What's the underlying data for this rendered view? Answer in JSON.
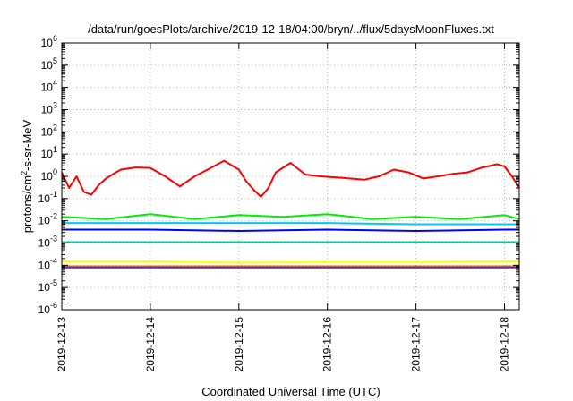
{
  "chart_data": {
    "type": "line",
    "title": "/data/run/goesPlots/archive/2019-12-18/04:00/bryn/../flux/5daysMoonFluxes.txt",
    "xlabel": "Coordinated Universal Time (UTC)",
    "ylabel": "protons/cm²-s-sr-MeV",
    "yscale": "log",
    "ylim": [
      1e-06,
      1000000.0
    ],
    "xlim": [
      "2019-12-13T00:00",
      "2019-12-18T04:00"
    ],
    "grid": true,
    "legend": "none",
    "x_ticks": [
      "2019-12-13",
      "2019-12-14",
      "2019-12-15",
      "2019-12-16",
      "2019-12-17",
      "2019-12-18"
    ],
    "y_ticks": [
      {
        "base": "10",
        "exp": "-6",
        "value": 1e-06
      },
      {
        "base": "10",
        "exp": "-5",
        "value": 1e-05
      },
      {
        "base": "10",
        "exp": "-4",
        "value": 0.0001
      },
      {
        "base": "10",
        "exp": "-3",
        "value": 0.001
      },
      {
        "base": "10",
        "exp": "-2",
        "value": 0.01
      },
      {
        "base": "10",
        "exp": "-1",
        "value": 0.1
      },
      {
        "base": "10",
        "exp": "0",
        "value": 1
      },
      {
        "base": "10",
        "exp": "1",
        "value": 10
      },
      {
        "base": "10",
        "exp": "2",
        "value": 100
      },
      {
        "base": "10",
        "exp": "3",
        "value": 1000
      },
      {
        "base": "10",
        "exp": "4",
        "value": 10000
      },
      {
        "base": "10",
        "exp": "5",
        "value": 100000
      },
      {
        "base": "10",
        "exp": "6",
        "value": 1000000
      }
    ],
    "series": [
      {
        "color": "#ff0000",
        "x": [
          "2019-12-13T00:00",
          "2019-12-13T02:00",
          "2019-12-13T04:00",
          "2019-12-13T06:00",
          "2019-12-13T08:00",
          "2019-12-13T10:00",
          "2019-12-13T12:00",
          "2019-12-13T14:00",
          "2019-12-13T16:00",
          "2019-12-13T20:00",
          "2019-12-14T00:00",
          "2019-12-14T04:00",
          "2019-12-14T08:00",
          "2019-12-14T12:00",
          "2019-12-14T16:00",
          "2019-12-14T20:00",
          "2019-12-15T00:00",
          "2019-12-15T02:00",
          "2019-12-15T04:00",
          "2019-12-15T06:00",
          "2019-12-15T08:00",
          "2019-12-15T10:00",
          "2019-12-15T14:00",
          "2019-12-15T18:00",
          "2019-12-15T22:00",
          "2019-12-16T02:00",
          "2019-12-16T06:00",
          "2019-12-16T10:00",
          "2019-12-16T14:00",
          "2019-12-16T18:00",
          "2019-12-16T22:00",
          "2019-12-17T02:00",
          "2019-12-17T06:00",
          "2019-12-17T10:00",
          "2019-12-17T14:00",
          "2019-12-17T18:00",
          "2019-12-17T22:00",
          "2019-12-18T00:00",
          "2019-12-18T02:00",
          "2019-12-18T04:00"
        ],
        "values": [
          1.5,
          0.3,
          1.0,
          0.2,
          0.15,
          0.4,
          0.8,
          1.3,
          2.0,
          2.5,
          2.4,
          1.0,
          0.35,
          1.0,
          2.2,
          5.0,
          2.0,
          0.6,
          0.25,
          0.12,
          0.3,
          1.5,
          4.0,
          1.2,
          1.0,
          0.9,
          0.8,
          0.7,
          1.0,
          2.0,
          1.5,
          0.8,
          1.0,
          1.3,
          1.5,
          2.5,
          3.5,
          2.8,
          1.0,
          0.3
        ]
      },
      {
        "color": "#00ee00",
        "x": [
          "2019-12-13T00:00",
          "2019-12-13T12:00",
          "2019-12-14T00:00",
          "2019-12-14T12:00",
          "2019-12-15T00:00",
          "2019-12-15T12:00",
          "2019-12-16T00:00",
          "2019-12-16T12:00",
          "2019-12-17T00:00",
          "2019-12-17T12:00",
          "2019-12-18T00:00",
          "2019-12-18T04:00"
        ],
        "values": [
          0.015,
          0.012,
          0.02,
          0.012,
          0.018,
          0.015,
          0.02,
          0.012,
          0.015,
          0.012,
          0.018,
          0.012
        ]
      },
      {
        "color": "#00c8ff",
        "x": [
          "2019-12-13T00:00",
          "2019-12-14T00:00",
          "2019-12-15T00:00",
          "2019-12-16T00:00",
          "2019-12-17T00:00",
          "2019-12-18T00:00",
          "2019-12-18T04:00"
        ],
        "values": [
          0.008,
          0.008,
          0.008,
          0.008,
          0.007,
          0.007,
          0.007
        ]
      },
      {
        "color": "#0000ff",
        "x": [
          "2019-12-13T00:00",
          "2019-12-14T00:00",
          "2019-12-15T00:00",
          "2019-12-16T00:00",
          "2019-12-17T00:00",
          "2019-12-18T00:00",
          "2019-12-18T04:00"
        ],
        "values": [
          0.004,
          0.004,
          0.0035,
          0.004,
          0.0035,
          0.004,
          0.004
        ]
      },
      {
        "color": "#00c8a0",
        "x": [
          "2019-12-13T00:00",
          "2019-12-14T00:00",
          "2019-12-15T00:00",
          "2019-12-16T00:00",
          "2019-12-17T00:00",
          "2019-12-18T00:00",
          "2019-12-18T04:00"
        ],
        "values": [
          0.0011,
          0.0011,
          0.0011,
          0.0011,
          0.0011,
          0.0011,
          0.0011
        ]
      },
      {
        "color": "#ffff00",
        "x": [
          "2019-12-13T00:00",
          "2019-12-14T00:00",
          "2019-12-15T00:00",
          "2019-12-16T00:00",
          "2019-12-17T00:00",
          "2019-12-18T00:00",
          "2019-12-18T04:00"
        ],
        "values": [
          0.00015,
          0.00015,
          0.00013,
          0.00014,
          0.00014,
          0.00015,
          0.00015
        ]
      },
      {
        "color": "#d08000",
        "x": [
          "2019-12-13T00:00",
          "2019-12-14T00:00",
          "2019-12-15T00:00",
          "2019-12-16T00:00",
          "2019-12-17T00:00",
          "2019-12-18T00:00",
          "2019-12-18T04:00"
        ],
        "values": [
          9e-05,
          9e-05,
          9e-05,
          9e-05,
          9e-05,
          9e-05,
          9e-05
        ]
      },
      {
        "color": "#8b1a8b",
        "x": [
          "2019-12-13T00:00",
          "2019-12-14T00:00",
          "2019-12-15T00:00",
          "2019-12-16T00:00",
          "2019-12-17T00:00",
          "2019-12-18T00:00",
          "2019-12-18T04:00"
        ],
        "values": [
          8e-05,
          8e-05,
          8e-05,
          8e-05,
          8e-05,
          8e-05,
          8e-05
        ]
      }
    ]
  }
}
